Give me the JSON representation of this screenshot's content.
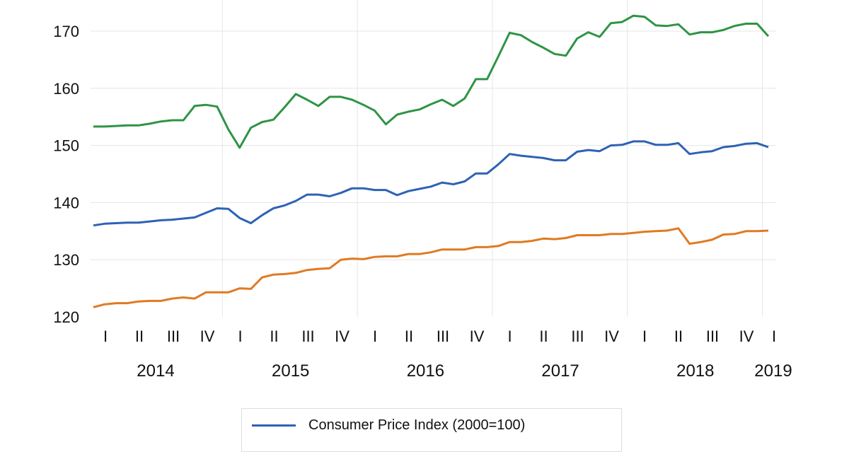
{
  "chart_data": {
    "type": "line",
    "x": [
      "2014-01",
      "2014-02",
      "2014-03",
      "2014-04",
      "2014-05",
      "2014-06",
      "2014-07",
      "2014-08",
      "2014-09",
      "2014-10",
      "2014-11",
      "2014-12",
      "2015-01",
      "2015-02",
      "2015-03",
      "2015-04",
      "2015-05",
      "2015-06",
      "2015-07",
      "2015-08",
      "2015-09",
      "2015-10",
      "2015-11",
      "2015-12",
      "2016-01",
      "2016-02",
      "2016-03",
      "2016-04",
      "2016-05",
      "2016-06",
      "2016-07",
      "2016-08",
      "2016-09",
      "2016-10",
      "2016-11",
      "2016-12",
      "2017-01",
      "2017-02",
      "2017-03",
      "2017-04",
      "2017-05",
      "2017-06",
      "2017-07",
      "2017-08",
      "2017-09",
      "2017-10",
      "2017-11",
      "2017-12",
      "2018-01",
      "2018-02",
      "2018-03",
      "2018-04",
      "2018-05",
      "2018-06",
      "2018-07",
      "2018-08",
      "2018-09",
      "2018-10",
      "2018-11",
      "2018-12",
      "2019-01"
    ],
    "series": [
      {
        "color": "#2e9445",
        "values": [
          153.3,
          153.3,
          153.4,
          153.5,
          153.5,
          153.8,
          154.2,
          154.4,
          154.4,
          156.9,
          157.1,
          156.8,
          152.8,
          149.6,
          153.1,
          154.1,
          154.5,
          156.7,
          159.0,
          158.0,
          156.9,
          158.5,
          158.5,
          158.0,
          157.1,
          156.1,
          153.7,
          155.4,
          155.9,
          156.3,
          157.2,
          158.0,
          156.9,
          158.2,
          161.6,
          161.6,
          165.6,
          169.7,
          169.3,
          168.1,
          167.1,
          166.0,
          165.7,
          168.7,
          169.8,
          169.0,
          171.4,
          171.6,
          172.7,
          172.5,
          171.0,
          170.9,
          171.2,
          169.4,
          169.8,
          169.8,
          170.2,
          170.9,
          171.3,
          171.3,
          169.1
        ]
      },
      {
        "name": "Consumer Price Index (2000=100)",
        "color": "#2e62b4",
        "values": [
          136.0,
          136.3,
          136.4,
          136.5,
          136.5,
          136.7,
          136.9,
          137.0,
          137.2,
          137.4,
          138.2,
          139.0,
          138.9,
          137.3,
          136.4,
          137.8,
          139.0,
          139.5,
          140.3,
          141.4,
          141.4,
          141.1,
          141.7,
          142.5,
          142.5,
          142.2,
          142.2,
          141.3,
          142.0,
          142.4,
          142.8,
          143.5,
          143.2,
          143.7,
          145.1,
          145.1,
          146.7,
          148.5,
          148.2,
          148.0,
          147.8,
          147.4,
          147.4,
          148.9,
          149.2,
          149.0,
          150.0,
          150.1,
          150.7,
          150.7,
          150.1,
          150.1,
          150.4,
          148.5,
          148.8,
          149.0,
          149.7,
          149.9,
          150.3,
          150.4,
          149.7
        ]
      },
      {
        "color": "#e07a22",
        "values": [
          121.7,
          122.2,
          122.4,
          122.4,
          122.7,
          122.8,
          122.8,
          123.2,
          123.4,
          123.2,
          124.3,
          124.3,
          124.3,
          125.0,
          124.9,
          126.9,
          127.4,
          127.5,
          127.7,
          128.2,
          128.4,
          128.5,
          130.0,
          130.2,
          130.1,
          130.5,
          130.6,
          130.6,
          131.0,
          131.0,
          131.3,
          131.8,
          131.8,
          131.8,
          132.2,
          132.2,
          132.4,
          133.1,
          133.1,
          133.3,
          133.7,
          133.6,
          133.8,
          134.3,
          134.3,
          134.3,
          134.5,
          134.5,
          134.7,
          134.9,
          135.0,
          135.1,
          135.5,
          132.8,
          133.1,
          133.5,
          134.4,
          134.5,
          135.0,
          135.0,
          135.1
        ]
      }
    ],
    "ylim": [
      120,
      175
    ],
    "yticks": [
      "120",
      "130",
      "140",
      "150",
      "160",
      "170"
    ],
    "quarter_labels": [
      "I",
      "II",
      "III",
      "IV"
    ],
    "years": [
      "2014",
      "2015",
      "2016",
      "2017",
      "2018",
      "2019"
    ],
    "grid": true,
    "legend_position": "bottom"
  },
  "legend": {
    "items": [
      {
        "label": "Consumer Price Index (2000=100)",
        "color": "#2e62b4"
      }
    ]
  }
}
